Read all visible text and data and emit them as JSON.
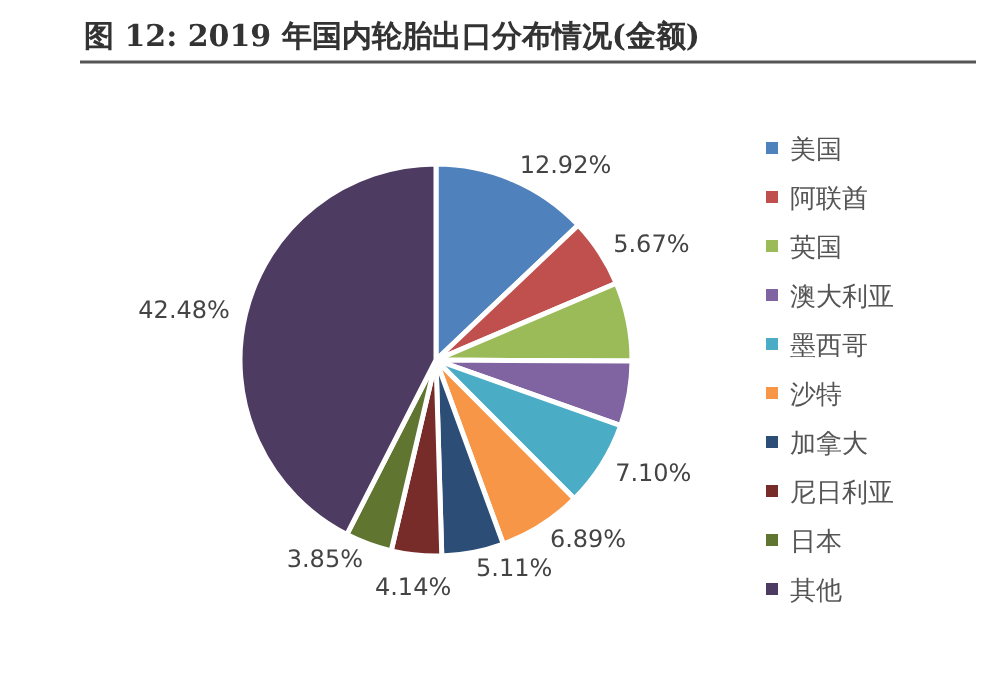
{
  "chart_data": {
    "type": "pie",
    "title": "图 12: 2019 年国内轮胎出口分布情况(金额)",
    "categories": [
      "美国",
      "阿联酋",
      "英国",
      "澳大利亚",
      "墨西哥",
      "沙特",
      "加拿大",
      "尼日利亚",
      "日本",
      "其他"
    ],
    "values": [
      12.92,
      5.67,
      6.5,
      5.34,
      7.1,
      6.89,
      5.11,
      4.14,
      3.85,
      42.48
    ],
    "value_labels": [
      "12.92%",
      "5.67%",
      null,
      null,
      "7.10%",
      "6.89%",
      "5.11%",
      "4.14%",
      "3.85%",
      "42.48%"
    ],
    "colors": [
      "#4f81bd",
      "#c0504d",
      "#9bbb59",
      "#8064a2",
      "#4bacc6",
      "#f79646",
      "#2c4d75",
      "#772c2a",
      "#5f7530",
      "#4d3b62"
    ],
    "legend": "right"
  }
}
